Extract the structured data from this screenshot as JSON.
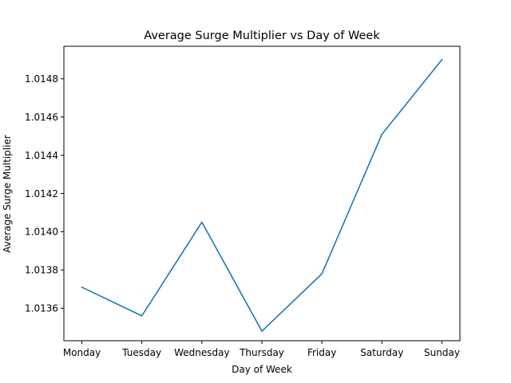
{
  "chart_data": {
    "type": "line",
    "title": "Average Surge Multiplier vs Day of Week",
    "xlabel": "Day of Week",
    "ylabel": "Average Surge Multiplier",
    "categories": [
      "Monday",
      "Tuesday",
      "Wednesday",
      "Thursday",
      "Friday",
      "Saturday",
      "Sunday"
    ],
    "series": [
      {
        "values": [
          1.01371,
          1.01356,
          1.01405,
          1.01348,
          1.01378,
          1.01451,
          1.0149
        ],
        "color": "#1f77b4"
      }
    ],
    "ylim": [
      1.01343,
      1.01497
    ],
    "yticks": [
      1.0136,
      1.0138,
      1.014,
      1.0142,
      1.0144,
      1.0146,
      1.0148
    ],
    "ytick_labels": [
      "1.0136",
      "1.0138",
      "1.0140",
      "1.0142",
      "1.0144",
      "1.0146",
      "1.0148"
    ],
    "grid": false,
    "legend": "none"
  }
}
